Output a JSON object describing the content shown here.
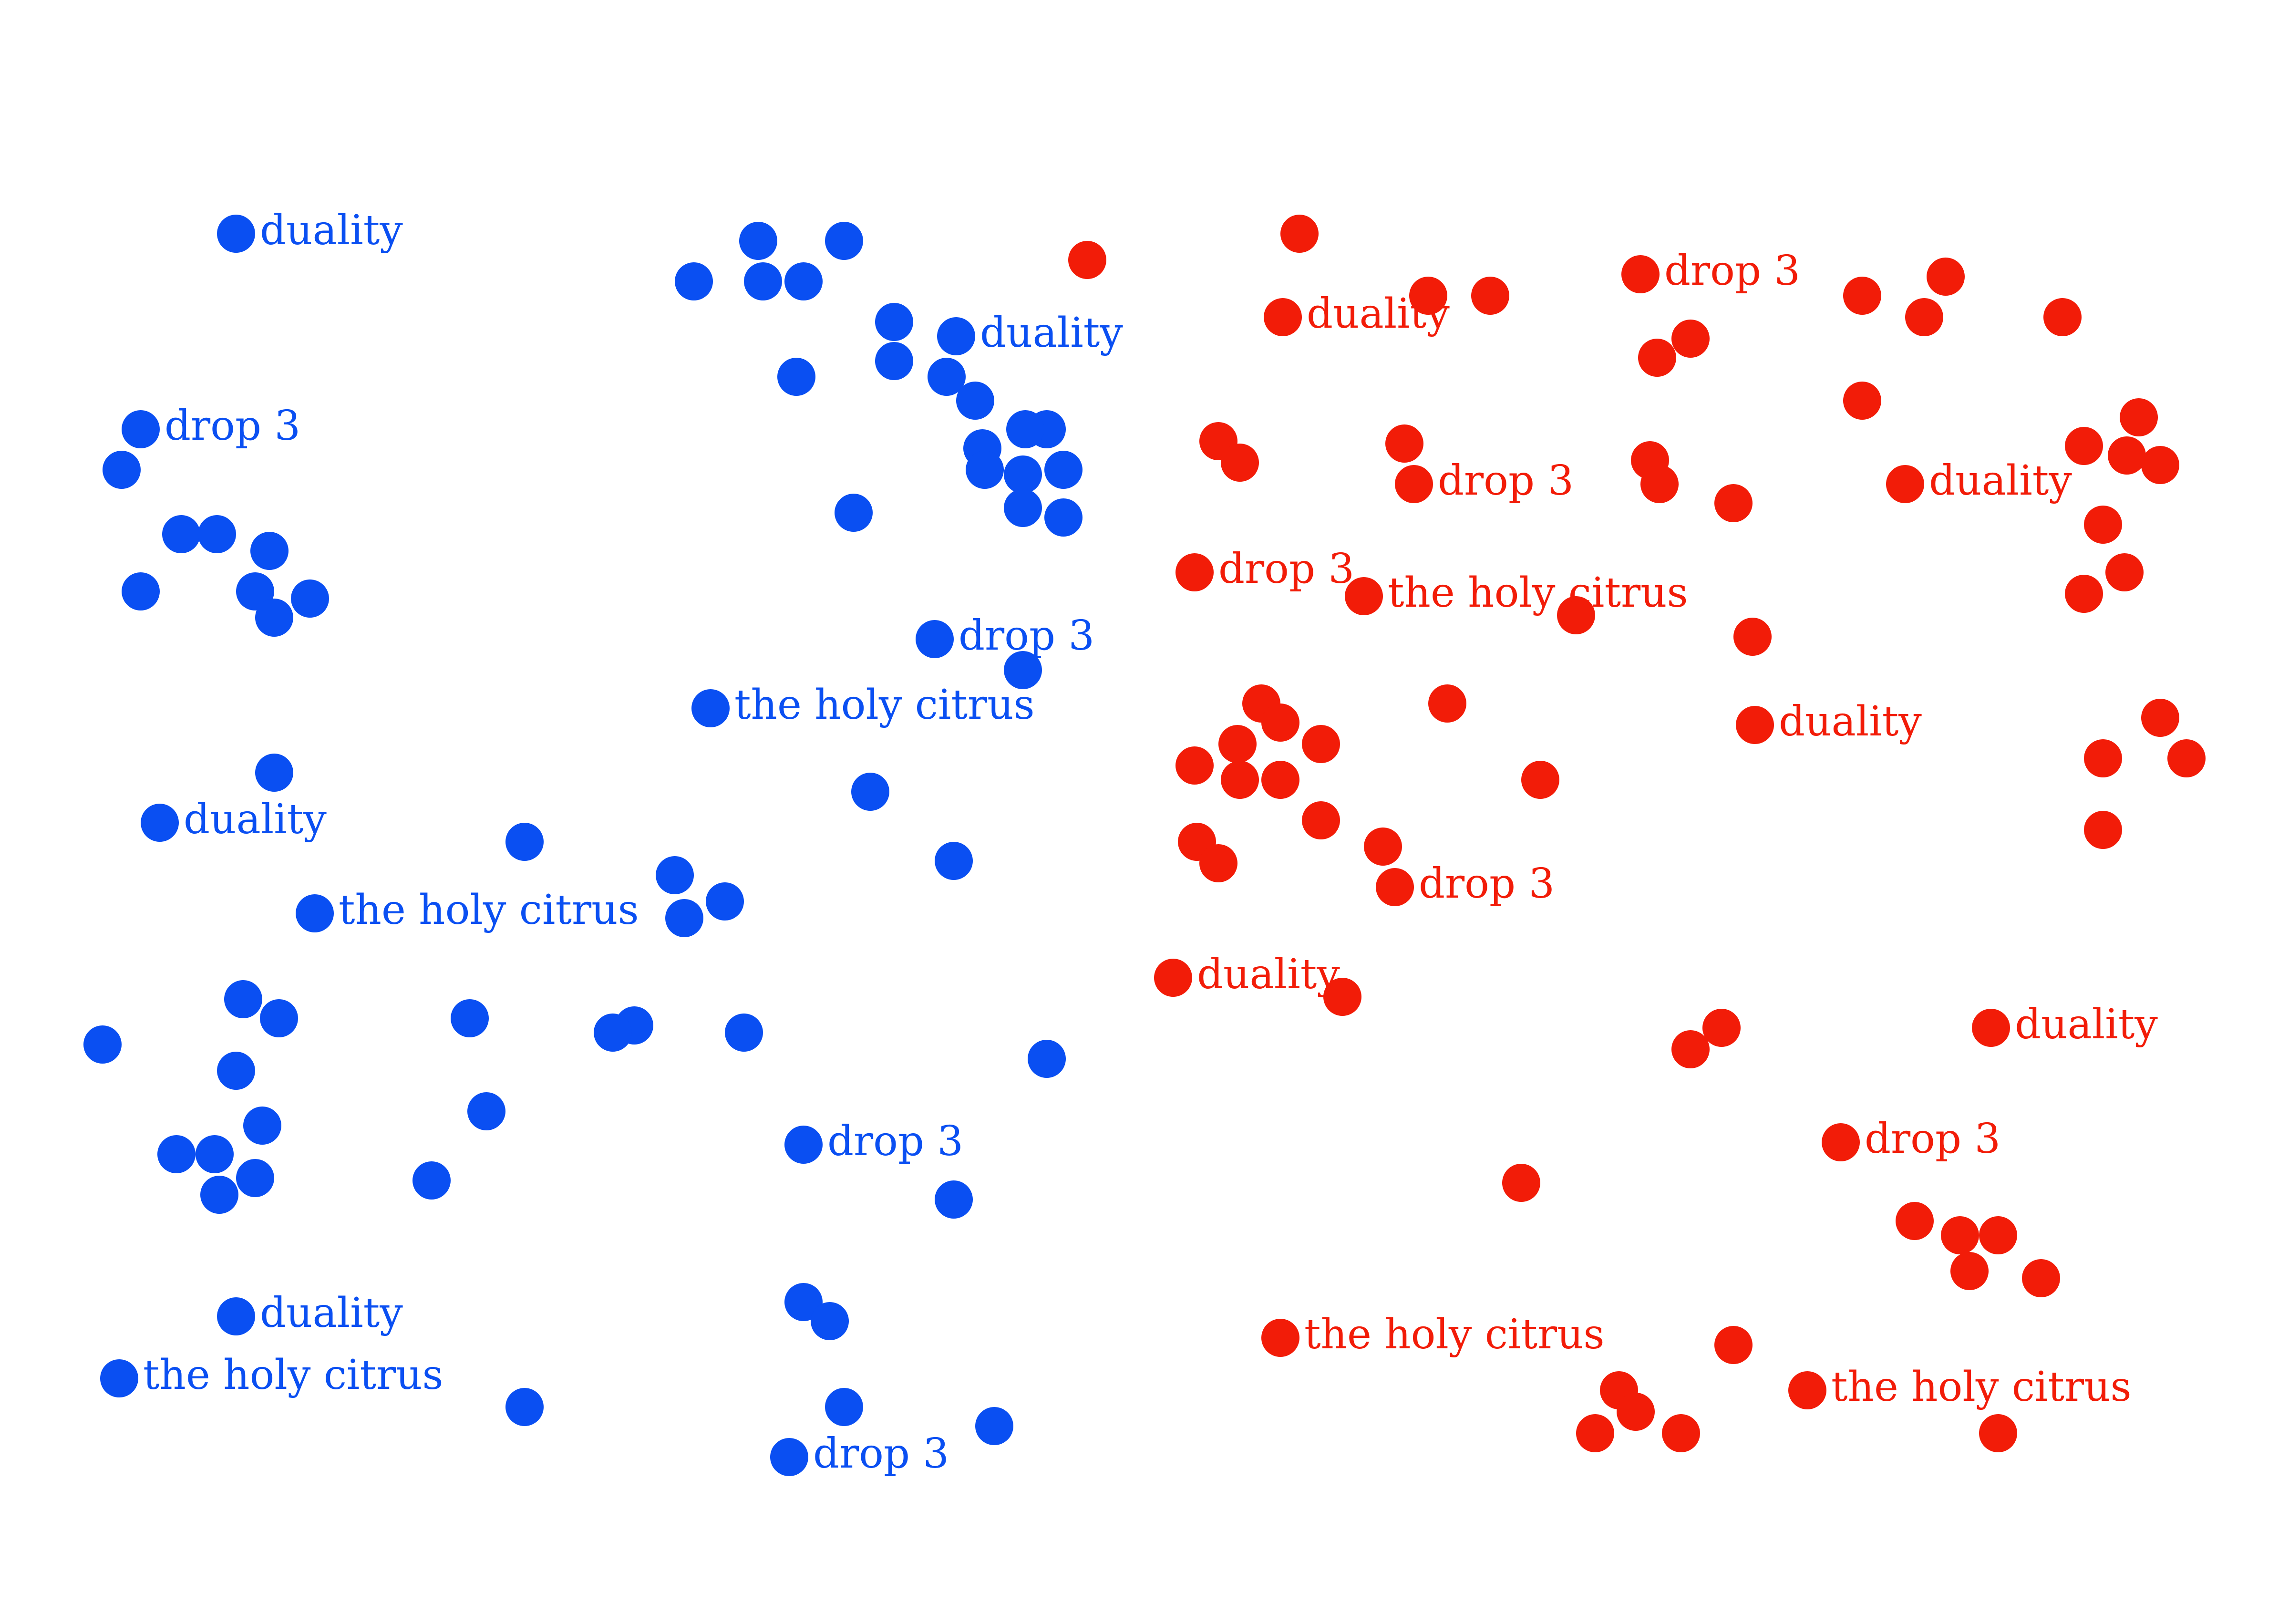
{
  "colors": {
    "blue": "#0a4ff2",
    "red": "#f21c08",
    "background": "#ffffff"
  },
  "clusters": [
    {
      "id": "blue",
      "color": "#0a4ff2",
      "labeled": [
        {
          "text": "duality"
        },
        {
          "text": "duality"
        },
        {
          "text": "drop 3"
        },
        {
          "text": "drop 3"
        },
        {
          "text": "the holy citrus"
        },
        {
          "text": "duality"
        },
        {
          "text": "the holy citrus"
        },
        {
          "text": "drop 3"
        },
        {
          "text": "duality"
        },
        {
          "text": "the holy citrus"
        },
        {
          "text": "drop 3"
        }
      ]
    },
    {
      "id": "red",
      "color": "#f21c08",
      "labeled": [
        {
          "text": "drop 3"
        },
        {
          "text": "duality"
        },
        {
          "text": "drop 3"
        },
        {
          "text": "duality"
        },
        {
          "text": "drop 3"
        },
        {
          "text": "the holy citrus"
        },
        {
          "text": "duality"
        },
        {
          "text": "drop 3"
        },
        {
          "text": "duality"
        },
        {
          "text": "duality"
        },
        {
          "text": "drop 3"
        },
        {
          "text": "the holy citrus"
        },
        {
          "text": "the holy citrus"
        }
      ]
    }
  ]
}
